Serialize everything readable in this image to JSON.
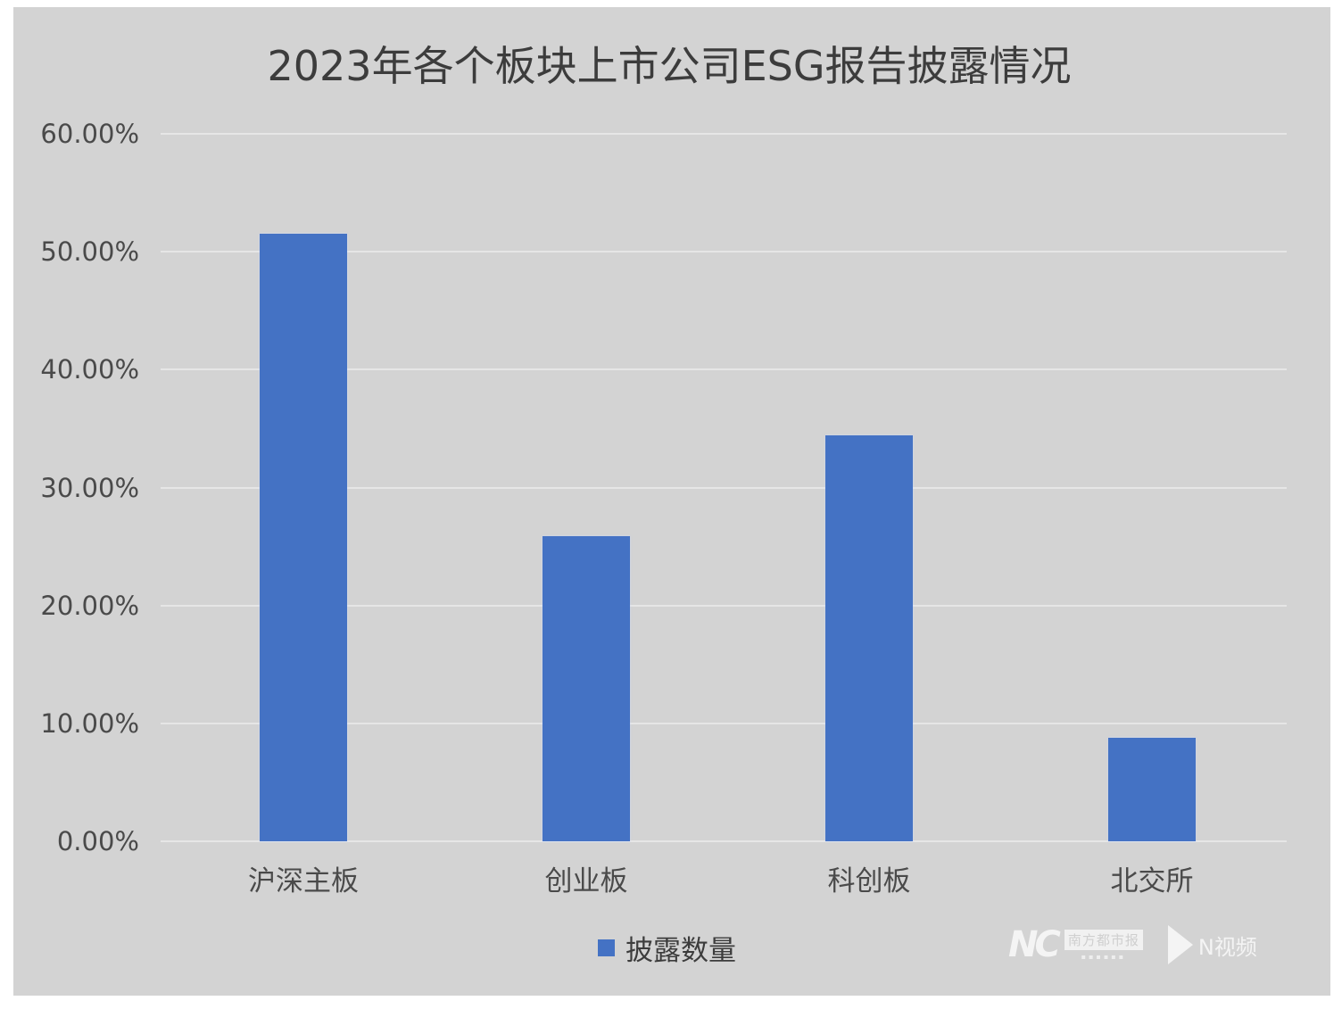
{
  "chart_data": {
    "type": "bar",
    "title": "2023年各个板块上市公司ESG报告披露情况",
    "categories": [
      "沪深主板",
      "创业板",
      "科创板",
      "北交所"
    ],
    "series": [
      {
        "name": "披露数量",
        "values": [
          51.5,
          25.9,
          34.4,
          8.8
        ],
        "color": "#4472c4"
      }
    ],
    "values": [
      51.5,
      25.9,
      34.4,
      8.8
    ],
    "xlabel": "",
    "ylabel": "",
    "ylim": [
      0,
      60
    ],
    "y_unit": "%",
    "yticks": [
      "0.00%",
      "10.00%",
      "20.00%",
      "30.00%",
      "40.00%",
      "50.00%",
      "60.00%"
    ],
    "grid": true,
    "legend_position": "bottom"
  },
  "title": "2023年各个板块上市公司ESG报告披露情况",
  "yaxis": {
    "ticks": [
      {
        "label": "60.00%",
        "value": 60
      },
      {
        "label": "50.00%",
        "value": 50
      },
      {
        "label": "40.00%",
        "value": 40
      },
      {
        "label": "30.00%",
        "value": 30
      },
      {
        "label": "20.00%",
        "value": 20
      },
      {
        "label": "10.00%",
        "value": 10
      },
      {
        "label": "0.00%",
        "value": 0
      }
    ]
  },
  "xaxis": {
    "labels": [
      "沪深主板",
      "创业板",
      "科创板",
      "北交所"
    ]
  },
  "legend": {
    "label": "披露数量",
    "color": "#4472c4"
  },
  "watermark": {
    "logo": "NC",
    "paper": "南方都市报",
    "video": "N视频"
  },
  "colors": {
    "background": "#d3d3d3",
    "bar": "#4472c4",
    "gridline": "#e6e6e6",
    "text": "#4a4a4a"
  }
}
